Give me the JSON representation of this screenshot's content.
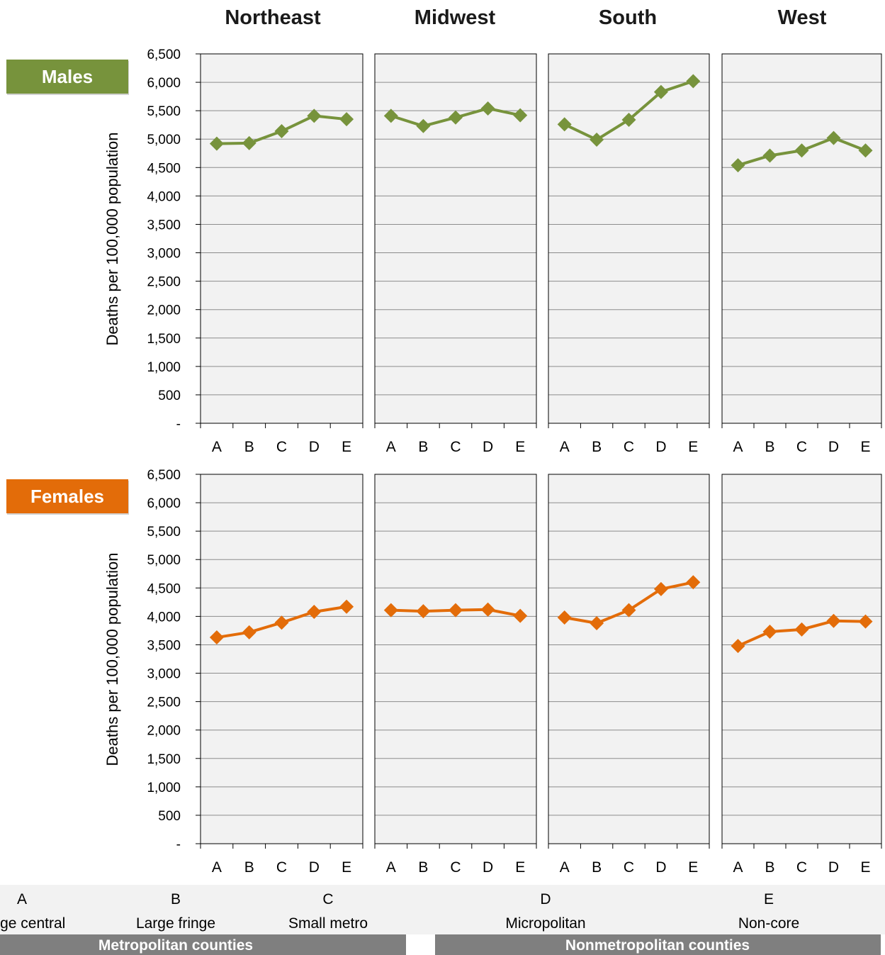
{
  "chart_data": {
    "type": "line",
    "ylabel": "Deaths per 100,000 population",
    "ylim": [
      0,
      6500
    ],
    "y_ticks": [
      "-",
      "500",
      "1,000",
      "1,500",
      "2,000",
      "2,500",
      "3,000",
      "3,500",
      "4,000",
      "4,500",
      "5,000",
      "5,500",
      "6,000",
      "6,500"
    ],
    "regions": [
      "Northeast",
      "Midwest",
      "South",
      "West"
    ],
    "categories": [
      "A",
      "B",
      "C",
      "D",
      "E"
    ],
    "grid": true,
    "rows": [
      {
        "label": "Males",
        "color": "#77933c",
        "series": [
          {
            "region": "Northeast",
            "values": [
              4920,
              4930,
              5140,
              5410,
              5350
            ]
          },
          {
            "region": "Midwest",
            "values": [
              5410,
              5230,
              5380,
              5540,
              5420
            ]
          },
          {
            "region": "South",
            "values": [
              5260,
              4990,
              5340,
              5830,
              6020
            ]
          },
          {
            "region": "West",
            "values": [
              4540,
              4710,
              4800,
              5020,
              4800
            ]
          }
        ]
      },
      {
        "label": "Females",
        "color": "#e36c09",
        "series": [
          {
            "region": "Northeast",
            "values": [
              3630,
              3720,
              3890,
              4080,
              4170
            ]
          },
          {
            "region": "Midwest",
            "values": [
              4110,
              4090,
              4110,
              4120,
              4010
            ]
          },
          {
            "region": "South",
            "values": [
              3980,
              3880,
              4110,
              4480,
              4600
            ]
          },
          {
            "region": "West",
            "values": [
              3480,
              3730,
              3770,
              3920,
              3910
            ]
          }
        ]
      }
    ],
    "legend": {
      "items": [
        {
          "letter": "A",
          "name": "Large central"
        },
        {
          "letter": "B",
          "name": "Large fringe"
        },
        {
          "letter": "C",
          "name": "Small metro"
        },
        {
          "letter": "D",
          "name": "Micropolitan"
        },
        {
          "letter": "E",
          "name": "Non-core"
        }
      ],
      "groups": [
        "Metropolitan counties",
        "Nonmetropolitan counties"
      ]
    }
  }
}
